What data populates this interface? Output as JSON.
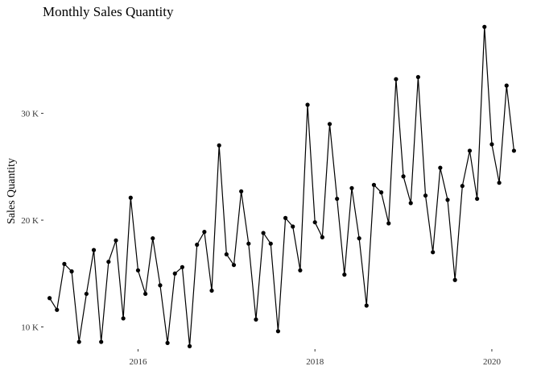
{
  "chart_data": {
    "type": "line",
    "title": "Monthly Sales Quantity",
    "xlabel": "",
    "ylabel": "Sales Quantity",
    "x_start": "2015-01",
    "x_ticks": [
      {
        "value": 2016,
        "label": "2016"
      },
      {
        "value": 2018,
        "label": "2018"
      },
      {
        "value": 2020,
        "label": "2020"
      }
    ],
    "y_ticks": [
      {
        "value": 10000,
        "label": "10 K"
      },
      {
        "value": 20000,
        "label": "20 K"
      },
      {
        "value": 30000,
        "label": "30 K"
      }
    ],
    "xlim": [
      2014.94,
      2020.31
    ],
    "ylim": [
      8000,
      38500
    ],
    "grid": false,
    "colors": {
      "line": "#000000",
      "point": "#000000"
    },
    "series": [
      {
        "values": [
          12700,
          11600,
          15900,
          15200,
          8600,
          13100,
          17200,
          8600,
          16100,
          18100,
          10800,
          22100,
          15300,
          13100,
          18300,
          13900,
          8500,
          15000,
          15600,
          8200,
          17700,
          18900,
          13400,
          27000,
          16800,
          15800,
          22700,
          17800,
          10700,
          18800,
          17800,
          9600,
          20200,
          19400,
          15300,
          30800,
          19800,
          18400,
          29000,
          22000,
          14900,
          23000,
          18300,
          12000,
          23300,
          22600,
          19700,
          33200,
          24100,
          21600,
          33400,
          22300,
          17000,
          24900,
          21900,
          14400,
          23200,
          26500,
          22000,
          38100,
          27100,
          23500,
          32600,
          26500
        ]
      }
    ]
  }
}
